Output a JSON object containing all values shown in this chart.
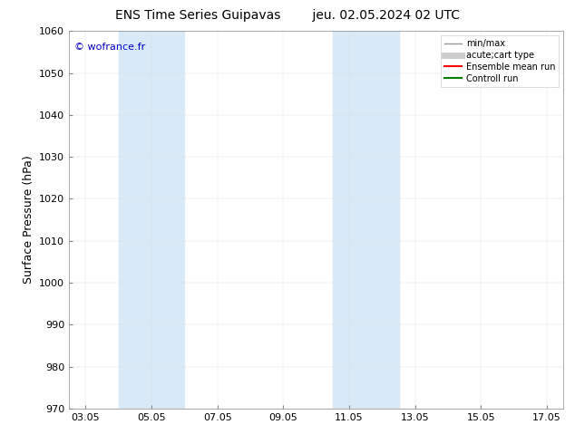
{
  "title_left": "ENS Time Series Guipavas",
  "title_right": "jeu. 02.05.2024 02 UTC",
  "ylabel": "Surface Pressure (hPa)",
  "ylim": [
    970,
    1060
  ],
  "yticks": [
    970,
    980,
    990,
    1000,
    1010,
    1020,
    1030,
    1040,
    1050,
    1060
  ],
  "xtick_labels": [
    "03.05",
    "05.05",
    "07.05",
    "09.05",
    "11.05",
    "13.05",
    "15.05",
    "17.05"
  ],
  "xtick_positions": [
    0,
    2,
    4,
    6,
    8,
    10,
    12,
    14
  ],
  "xlim": [
    -0.5,
    14.5
  ],
  "shaded_regions": [
    {
      "x_start": 1.0,
      "x_end": 3.0,
      "color": "#d8eaf8"
    },
    {
      "x_start": 7.5,
      "x_end": 9.5,
      "color": "#d8eaf8"
    }
  ],
  "watermark_text": "© wofrance.fr",
  "watermark_color": "#0000cc",
  "background_color": "#ffffff",
  "plot_bg_color": "#ffffff",
  "legend_entries": [
    {
      "label": "min/max",
      "color": "#999999",
      "linewidth": 1.0,
      "linestyle": "-"
    },
    {
      "label": "acute;cart type",
      "color": "#cccccc",
      "linewidth": 5,
      "linestyle": "-"
    },
    {
      "label": "Ensemble mean run",
      "color": "#ff0000",
      "linewidth": 1.5,
      "linestyle": "-"
    },
    {
      "label": "Controll run",
      "color": "#008000",
      "linewidth": 1.5,
      "linestyle": "-"
    }
  ],
  "grid_color": "#e0e0e0",
  "grid_linewidth": 0.3,
  "title_fontsize": 10,
  "tick_fontsize": 8,
  "ylabel_fontsize": 9,
  "watermark_fontsize": 8,
  "legend_fontsize": 7
}
